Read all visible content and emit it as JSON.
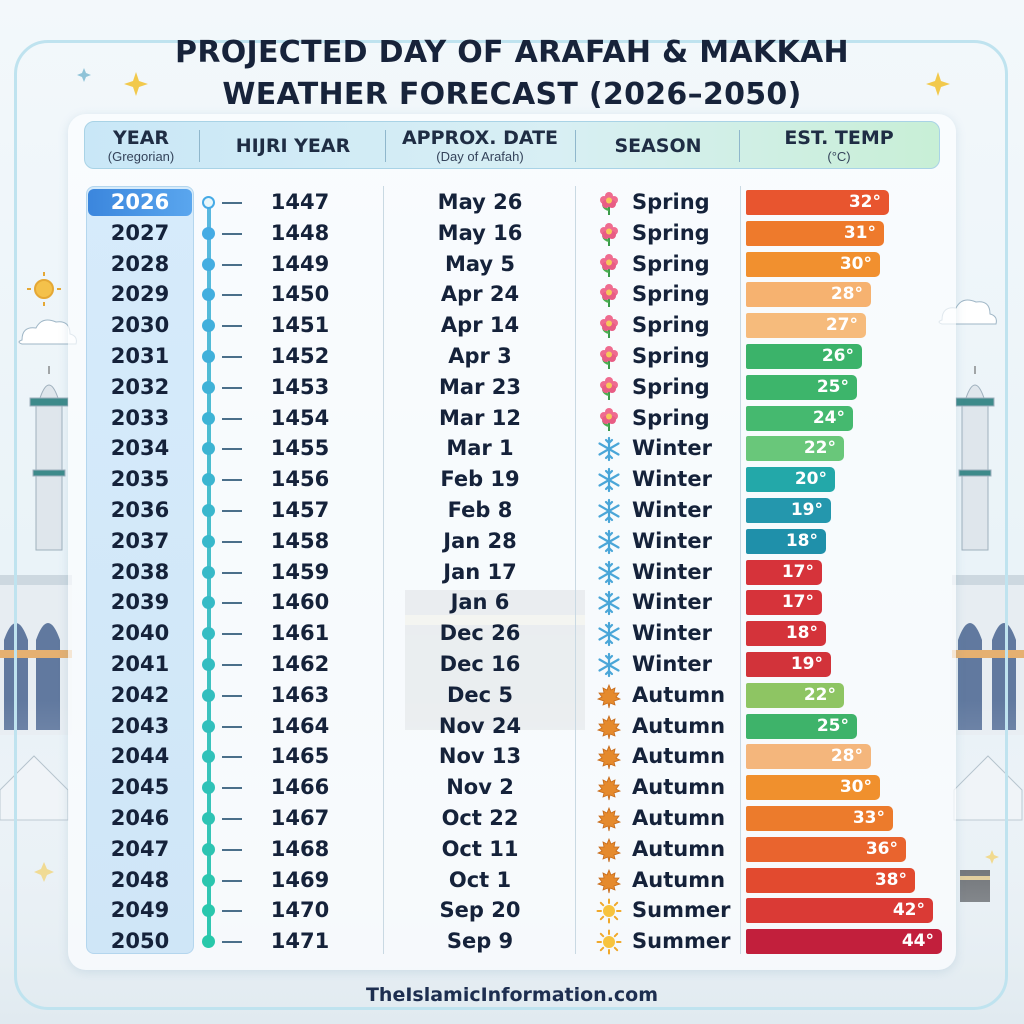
{
  "title_lines": [
    "PROJECTED DAY OF ARAFAH & MAKKAH",
    "WEATHER FORECAST (2026–2050)"
  ],
  "headers": {
    "year": "YEAR",
    "year_sub": "(Gregorian)",
    "hijri": "HIJRI YEAR",
    "date": "APPROX. DATE",
    "date_sub": "(Day of Arafah)",
    "season": "SEASON",
    "temp": "EST. TEMP",
    "temp_sub": "(°C)"
  },
  "footer": "TheIslamicInformation.com",
  "season_icons": {
    "Spring": "flower-icon",
    "Winter": "snowflake-icon",
    "Autumn": "maple-leaf-icon",
    "Summer": "sun-icon"
  },
  "chart_data": {
    "type": "table",
    "temp_unit_suffix": "°",
    "temp_max": 44,
    "rows": [
      {
        "year": "2026",
        "hijri": "1447",
        "date": "May 26",
        "season": "Spring",
        "temp": 32,
        "color": "#e8552f"
      },
      {
        "year": "2027",
        "hijri": "1448",
        "date": "May 16",
        "season": "Spring",
        "temp": 31,
        "color": "#ee7a2c"
      },
      {
        "year": "2028",
        "hijri": "1449",
        "date": "May 5",
        "season": "Spring",
        "temp": 30,
        "color": "#f1902f"
      },
      {
        "year": "2029",
        "hijri": "1450",
        "date": "Apr 24",
        "season": "Spring",
        "temp": 28,
        "color": "#f6b270"
      },
      {
        "year": "2030",
        "hijri": "1451",
        "date": "Apr 14",
        "season": "Spring",
        "temp": 27,
        "color": "#f6bb7c"
      },
      {
        "year": "2031",
        "hijri": "1452",
        "date": "Apr 3",
        "season": "Spring",
        "temp": 26,
        "color": "#3bb36a"
      },
      {
        "year": "2032",
        "hijri": "1453",
        "date": "Mar 23",
        "season": "Spring",
        "temp": 25,
        "color": "#3db56b"
      },
      {
        "year": "2033",
        "hijri": "1454",
        "date": "Mar 12",
        "season": "Spring",
        "temp": 24,
        "color": "#45b96f"
      },
      {
        "year": "2034",
        "hijri": "1455",
        "date": "Mar 1",
        "season": "Winter",
        "temp": 22,
        "color": "#69c77a"
      },
      {
        "year": "2035",
        "hijri": "1456",
        "date": "Feb 19",
        "season": "Winter",
        "temp": 20,
        "color": "#23a8a9"
      },
      {
        "year": "2036",
        "hijri": "1457",
        "date": "Feb 8",
        "season": "Winter",
        "temp": 19,
        "color": "#2497ad"
      },
      {
        "year": "2037",
        "hijri": "1458",
        "date": "Jan 28",
        "season": "Winter",
        "temp": 18,
        "color": "#1f90aa"
      },
      {
        "year": "2038",
        "hijri": "1459",
        "date": "Jan 17",
        "season": "Winter",
        "temp": 17,
        "color": "#d6333a"
      },
      {
        "year": "2039",
        "hijri": "1460",
        "date": "Jan 6",
        "season": "Winter",
        "temp": 17,
        "color": "#d6333a"
      },
      {
        "year": "2040",
        "hijri": "1461",
        "date": "Dec 26",
        "season": "Winter",
        "temp": 18,
        "color": "#d4333a"
      },
      {
        "year": "2041",
        "hijri": "1462",
        "date": "Dec 16",
        "season": "Winter",
        "temp": 19,
        "color": "#d2333a"
      },
      {
        "year": "2042",
        "hijri": "1463",
        "date": "Dec 5",
        "season": "Autumn",
        "temp": 22,
        "color": "#8ec563"
      },
      {
        "year": "2043",
        "hijri": "1464",
        "date": "Nov 24",
        "season": "Autumn",
        "temp": 25,
        "color": "#3eb36a"
      },
      {
        "year": "2044",
        "hijri": "1465",
        "date": "Nov 13",
        "season": "Autumn",
        "temp": 28,
        "color": "#f4b67c"
      },
      {
        "year": "2045",
        "hijri": "1466",
        "date": "Nov 2",
        "season": "Autumn",
        "temp": 30,
        "color": "#f0902d"
      },
      {
        "year": "2046",
        "hijri": "1467",
        "date": "Oct 22",
        "season": "Autumn",
        "temp": 33,
        "color": "#ec7b2c"
      },
      {
        "year": "2047",
        "hijri": "1468",
        "date": "Oct 11",
        "season": "Autumn",
        "temp": 36,
        "color": "#e9642e"
      },
      {
        "year": "2048",
        "hijri": "1469",
        "date": "Oct 1",
        "season": "Autumn",
        "temp": 38,
        "color": "#e24a2f"
      },
      {
        "year": "2049",
        "hijri": "1470",
        "date": "Sep 20",
        "season": "Summer",
        "temp": 42,
        "color": "#da3a35"
      },
      {
        "year": "2050",
        "hijri": "1471",
        "date": "Sep 9",
        "season": "Summer",
        "temp": 44,
        "color": "#c21f3c"
      }
    ]
  }
}
